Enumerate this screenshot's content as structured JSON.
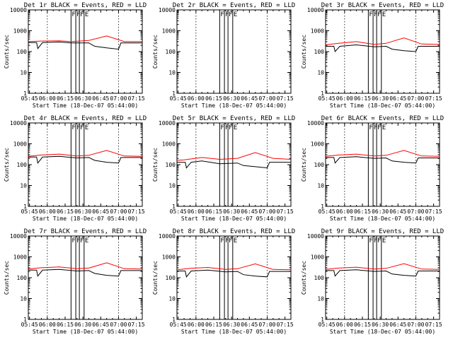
{
  "colors": {
    "events": "#000000",
    "lld": "#ff0000",
    "axis": "#000000",
    "background": "#ffffff"
  },
  "x_axis": {
    "label": "Start Time (18-Dec-07 05:44:00)",
    "start": "05:44:00",
    "end": "07:20:00",
    "ticks": [
      "05:45",
      "06:00",
      "06:15",
      "06:30",
      "06:45",
      "07:00",
      "07:15"
    ]
  },
  "y_axis": {
    "label": "Counts/sec",
    "scale": "log",
    "ticks": [
      "1",
      "10",
      "100",
      "1000",
      "10000"
    ]
  },
  "chart_data": [
    {
      "type": "line",
      "title": "Det 1r BLACK = Events, RED = LLD",
      "xlabel": "Start Time (18-Dec-07 05:44:00)",
      "ylabel": "Counts/sec",
      "ylim": [
        1,
        10000
      ],
      "yscale": "log",
      "dotted_markers": [
        "06:00",
        "07:00"
      ],
      "solid_markers": [
        "06:20",
        "06:24",
        "06:27",
        "06:31"
      ],
      "marker_letters": [
        "F",
        "F",
        "F",
        "E"
      ],
      "series": [
        {
          "color": "#ff0000",
          "x": [
            "05:44",
            "05:55",
            "06:10",
            "06:20",
            "06:35",
            "06:50",
            "07:05",
            "07:20"
          ],
          "values": [
            300,
            320,
            330,
            300,
            340,
            560,
            300,
            300
          ]
        },
        {
          "color": "#000000",
          "x": [
            "05:44",
            "05:51",
            "05:52",
            "05:56",
            "06:10",
            "06:20",
            "06:35",
            "06:40",
            "06:50",
            "07:00",
            "07:02",
            "07:20"
          ],
          "values": [
            270,
            270,
            140,
            270,
            290,
            260,
            260,
            180,
            150,
            130,
            260,
            260
          ]
        }
      ]
    },
    {
      "type": "line",
      "title": "Det 2r BLACK = Events, RED = LLD",
      "xlabel": "Start Time (18-Dec-07 05:44:00)",
      "ylabel": "Counts/sec",
      "ylim": [
        1,
        10000
      ],
      "yscale": "log",
      "dotted_markers": [
        "06:00",
        "07:00"
      ],
      "solid_markers": [
        "06:20",
        "06:24",
        "06:27",
        "06:31"
      ],
      "marker_letters": [
        "F",
        "F",
        "F",
        "E"
      ],
      "series": []
    },
    {
      "type": "line",
      "title": "Det 3r BLACK = Events, RED = LLD",
      "xlabel": "Start Time (18-Dec-07 05:44:00)",
      "ylabel": "Counts/sec",
      "ylim": [
        1,
        10000
      ],
      "yscale": "log",
      "dotted_markers": [
        "06:00",
        "07:00"
      ],
      "solid_markers": [
        "06:20",
        "06:24",
        "06:27",
        "06:31"
      ],
      "marker_letters": [
        "F",
        "F",
        "F",
        "E"
      ],
      "series": [
        {
          "color": "#ff0000",
          "x": [
            "05:44",
            "05:55",
            "06:10",
            "06:25",
            "06:35",
            "06:50",
            "07:05",
            "07:20"
          ],
          "values": [
            210,
            250,
            300,
            220,
            250,
            450,
            230,
            220
          ]
        },
        {
          "color": "#000000",
          "x": [
            "05:44",
            "05:51",
            "05:52",
            "05:56",
            "06:10",
            "06:25",
            "06:35",
            "06:40",
            "06:50",
            "07:00",
            "07:02",
            "07:20"
          ],
          "values": [
            180,
            180,
            100,
            180,
            210,
            170,
            180,
            130,
            110,
            100,
            180,
            180
          ]
        }
      ]
    },
    {
      "type": "line",
      "title": "Det 4r BLACK = Events, RED = LLD",
      "xlabel": "Start Time (18-Dec-07 05:44:00)",
      "ylabel": "Counts/sec",
      "ylim": [
        1,
        10000
      ],
      "yscale": "log",
      "dotted_markers": [
        "06:00",
        "07:00"
      ],
      "solid_markers": [
        "06:20",
        "06:24",
        "06:27",
        "06:31"
      ],
      "marker_letters": [
        "F",
        "F",
        "F",
        "E"
      ],
      "series": [
        {
          "color": "#ff0000",
          "x": [
            "05:44",
            "05:55",
            "06:10",
            "06:25",
            "06:35",
            "06:50",
            "07:05",
            "07:20"
          ],
          "values": [
            250,
            290,
            320,
            260,
            280,
            480,
            260,
            250
          ]
        },
        {
          "color": "#000000",
          "x": [
            "05:44",
            "05:51",
            "05:52",
            "05:56",
            "06:10",
            "06:25",
            "06:35",
            "06:40",
            "06:50",
            "07:00",
            "07:02",
            "07:20"
          ],
          "values": [
            230,
            230,
            120,
            230,
            250,
            210,
            220,
            160,
            130,
            120,
            220,
            220
          ]
        }
      ]
    },
    {
      "type": "line",
      "title": "Det 5r BLACK = Events, RED = LLD",
      "xlabel": "Start Time (18-Dec-07 05:44:00)",
      "ylabel": "Counts/sec",
      "ylim": [
        1,
        10000
      ],
      "yscale": "log",
      "dotted_markers": [
        "06:00",
        "07:00"
      ],
      "solid_markers": [
        "06:20",
        "06:24",
        "06:27",
        "06:31"
      ],
      "marker_letters": [
        "F",
        "F",
        "F",
        "E"
      ],
      "series": [
        {
          "color": "#ff0000",
          "x": [
            "05:44",
            "05:50",
            "06:05",
            "06:20",
            "06:35",
            "06:50",
            "07:05",
            "07:20"
          ],
          "values": [
            160,
            170,
            220,
            180,
            200,
            380,
            200,
            180
          ]
        },
        {
          "color": "#000000",
          "x": [
            "05:44",
            "05:51",
            "05:52",
            "05:56",
            "06:05",
            "06:20",
            "06:35",
            "06:40",
            "06:50",
            "07:00",
            "07:02",
            "07:20"
          ],
          "values": [
            130,
            130,
            70,
            130,
            150,
            110,
            120,
            90,
            80,
            70,
            130,
            130
          ]
        }
      ]
    },
    {
      "type": "line",
      "title": "Det 6r BLACK = Events, RED = LLD",
      "xlabel": "Start Time (18-Dec-07 05:44:00)",
      "ylabel": "Counts/sec",
      "ylim": [
        1,
        10000
      ],
      "yscale": "log",
      "dotted_markers": [
        "06:00",
        "07:00"
      ],
      "solid_markers": [
        "06:20",
        "06:24",
        "06:27",
        "06:31"
      ],
      "marker_letters": [
        "F",
        "F",
        "F",
        "E"
      ],
      "series": [
        {
          "color": "#ff0000",
          "x": [
            "05:44",
            "05:55",
            "06:10",
            "06:25",
            "06:35",
            "06:50",
            "07:05",
            "07:20"
          ],
          "values": [
            250,
            290,
            320,
            260,
            280,
            480,
            260,
            250
          ]
        },
        {
          "color": "#000000",
          "x": [
            "05:44",
            "05:51",
            "05:52",
            "05:56",
            "06:10",
            "06:25",
            "06:35",
            "06:40",
            "06:50",
            "07:00",
            "07:02",
            "07:20"
          ],
          "values": [
            220,
            220,
            120,
            220,
            240,
            200,
            210,
            150,
            130,
            120,
            210,
            210
          ]
        }
      ]
    },
    {
      "type": "line",
      "title": "Det 7r BLACK = Events, RED = LLD",
      "xlabel": "Start Time (18-Dec-07 05:44:00)",
      "ylabel": "Counts/sec",
      "ylim": [
        1,
        10000
      ],
      "yscale": "log",
      "dotted_markers": [
        "06:00",
        "07:00"
      ],
      "solid_markers": [
        "06:20",
        "06:24",
        "06:27",
        "06:31"
      ],
      "marker_letters": [
        "F",
        "F",
        "F",
        "E"
      ],
      "series": [
        {
          "color": "#ff0000",
          "x": [
            "05:44",
            "05:55",
            "06:10",
            "06:25",
            "06:35",
            "06:50",
            "07:05",
            "07:20"
          ],
          "values": [
            260,
            300,
            330,
            270,
            290,
            520,
            270,
            260
          ]
        },
        {
          "color": "#000000",
          "x": [
            "05:44",
            "05:51",
            "05:52",
            "05:56",
            "06:10",
            "06:25",
            "06:35",
            "06:40",
            "06:50",
            "07:00",
            "07:02",
            "07:20"
          ],
          "values": [
            230,
            230,
            120,
            230,
            250,
            210,
            220,
            160,
            130,
            120,
            220,
            220
          ]
        }
      ]
    },
    {
      "type": "line",
      "title": "Det 8r BLACK = Events, RED = LLD",
      "xlabel": "Start Time (18-Dec-07 05:44:00)",
      "ylabel": "Counts/sec",
      "ylim": [
        1,
        10000
      ],
      "yscale": "log",
      "dotted_markers": [
        "06:00",
        "07:00"
      ],
      "solid_markers": [
        "06:20",
        "06:24",
        "06:27",
        "06:31"
      ],
      "marker_letters": [
        "F",
        "F",
        "F",
        "E"
      ],
      "series": [
        {
          "color": "#ff0000",
          "x": [
            "05:44",
            "05:55",
            "06:10",
            "06:25",
            "06:35",
            "06:50",
            "07:05",
            "07:20"
          ],
          "values": [
            240,
            280,
            310,
            250,
            270,
            460,
            250,
            240
          ]
        },
        {
          "color": "#000000",
          "x": [
            "05:44",
            "05:51",
            "05:52",
            "05:56",
            "06:10",
            "06:25",
            "06:35",
            "06:40",
            "06:50",
            "07:00",
            "07:02",
            "07:20"
          ],
          "values": [
            210,
            210,
            110,
            210,
            230,
            190,
            200,
            140,
            120,
            110,
            200,
            200
          ]
        }
      ]
    },
    {
      "type": "line",
      "title": "Det 9r BLACK = Events, RED = LLD",
      "xlabel": "Start Time (18-Dec-07 05:44:00)",
      "ylabel": "Counts/sec",
      "ylim": [
        1,
        10000
      ],
      "yscale": "log",
      "dotted_markers": [
        "06:00",
        "07:00"
      ],
      "solid_markers": [
        "06:20",
        "06:24",
        "06:27",
        "06:31"
      ],
      "marker_letters": [
        "F",
        "F",
        "F",
        "E"
      ],
      "series": [
        {
          "color": "#ff0000",
          "x": [
            "05:44",
            "05:55",
            "06:10",
            "06:25",
            "06:35",
            "06:50",
            "07:05",
            "07:20"
          ],
          "values": [
            250,
            290,
            320,
            260,
            280,
            470,
            260,
            250
          ]
        },
        {
          "color": "#000000",
          "x": [
            "05:44",
            "05:51",
            "05:52",
            "05:56",
            "06:10",
            "06:25",
            "06:35",
            "06:40",
            "06:50",
            "07:00",
            "07:02",
            "07:20"
          ],
          "values": [
            220,
            220,
            120,
            220,
            240,
            200,
            210,
            150,
            130,
            120,
            210,
            210
          ]
        }
      ]
    }
  ]
}
